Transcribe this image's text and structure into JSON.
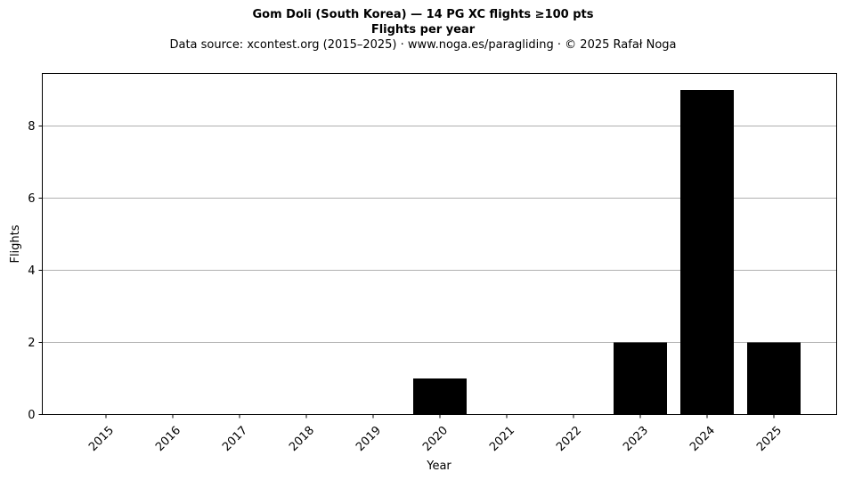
{
  "chart_data": {
    "type": "bar",
    "title": "Gom Doli (South Korea)  —  14 PG XC flights ≥100 pts",
    "subtitle": "Flights per year",
    "source": "Data source: xcontest.org (2015–2025)  ·  www.noga.es/paragliding  ·  © 2025 Rafał Noga",
    "xlabel": "Year",
    "ylabel": "Flights",
    "categories": [
      "2015",
      "2016",
      "2017",
      "2018",
      "2019",
      "2020",
      "2021",
      "2022",
      "2023",
      "2024",
      "2025"
    ],
    "values": [
      0,
      0,
      0,
      0,
      0,
      1,
      0,
      0,
      2,
      9,
      2
    ],
    "ylim": [
      0,
      9.45
    ],
    "yticks": [
      0,
      2,
      4,
      6,
      8
    ],
    "grid": "y",
    "bar_color": "#000000",
    "grid_color": "#b0b0b0"
  }
}
